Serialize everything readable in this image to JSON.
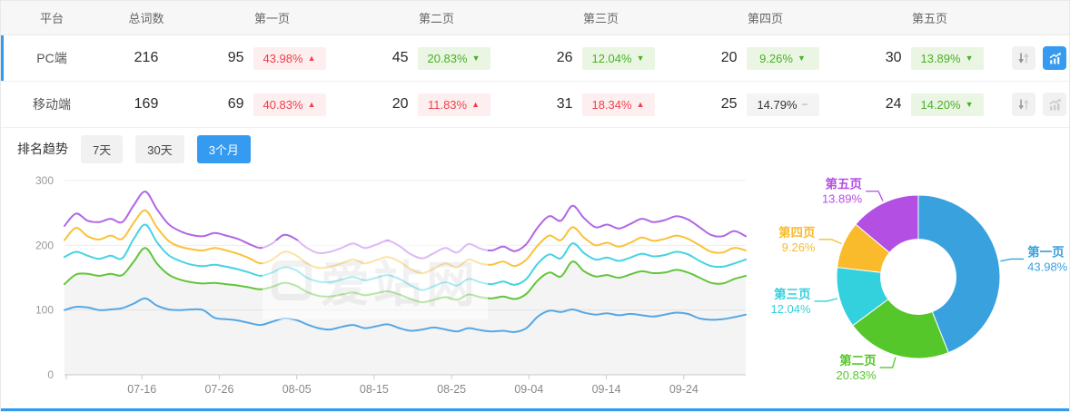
{
  "colors": {
    "accent": "#359bf0",
    "red_text": "#f0404a",
    "red_bg": "#fdeff0",
    "green_text": "#4caf28",
    "green_bg": "#eaf6e3",
    "gray_badge_bg": "#f4f4f4",
    "selected_row_bar": "#2f9cf4"
  },
  "table": {
    "headers": [
      "平台",
      "总词数",
      "第一页",
      "第二页",
      "第三页",
      "第四页",
      "第五页"
    ],
    "rows": [
      {
        "platform": "PC端",
        "total": "216",
        "selected": true,
        "chart_active": true,
        "pages": [
          {
            "count": "95",
            "change": "43.98%",
            "dir": "up",
            "tone": "red"
          },
          {
            "count": "45",
            "change": "20.83%",
            "dir": "down",
            "tone": "green"
          },
          {
            "count": "26",
            "change": "12.04%",
            "dir": "down",
            "tone": "green"
          },
          {
            "count": "20",
            "change": "9.26%",
            "dir": "down",
            "tone": "green"
          },
          {
            "count": "30",
            "change": "13.89%",
            "dir": "down",
            "tone": "green"
          }
        ]
      },
      {
        "platform": "移动端",
        "total": "169",
        "selected": false,
        "chart_active": false,
        "pages": [
          {
            "count": "69",
            "change": "40.83%",
            "dir": "up",
            "tone": "red"
          },
          {
            "count": "20",
            "change": "11.83%",
            "dir": "up",
            "tone": "red"
          },
          {
            "count": "31",
            "change": "18.34%",
            "dir": "up",
            "tone": "red"
          },
          {
            "count": "25",
            "change": "14.79%",
            "dir": "flat",
            "tone": "gray"
          },
          {
            "count": "24",
            "change": "14.20%",
            "dir": "down",
            "tone": "green"
          }
        ]
      }
    ]
  },
  "trend": {
    "label": "排名趋势",
    "tabs": [
      {
        "label": "7天",
        "active": false
      },
      {
        "label": "30天",
        "active": false
      },
      {
        "label": "3个月",
        "active": true
      }
    ]
  },
  "watermark": "爱站网",
  "chart_data": [
    {
      "type": "line",
      "title": "排名趋势 3个月",
      "x_tick_labels": [
        "07-16",
        "07-26",
        "08-05",
        "08-15",
        "08-25",
        "09-04",
        "09-14",
        "09-24"
      ],
      "x_tick_days": [
        10,
        20,
        30,
        40,
        50,
        60,
        70,
        80
      ],
      "x_domain_days": [
        0,
        88
      ],
      "ylim": [
        0,
        300
      ],
      "y_ticks": [
        0,
        100,
        200,
        300
      ],
      "grid": true,
      "legend_position": "none",
      "series": [
        {
          "name": "第一页",
          "color": "#55a7e5",
          "area_fill": false,
          "values": [
            100,
            105,
            104,
            100,
            101,
            103,
            110,
            118,
            107,
            101,
            100,
            101,
            100,
            88,
            86,
            84,
            80,
            77,
            82,
            87,
            85,
            78,
            72,
            70,
            74,
            77,
            72,
            75,
            78,
            72,
            68,
            70,
            73,
            70,
            67,
            72,
            69,
            67,
            68,
            66,
            72,
            90,
            99,
            97,
            101,
            96,
            93,
            95,
            92,
            94,
            92,
            90,
            93,
            96,
            94,
            87,
            85,
            86,
            89,
            93
          ]
        },
        {
          "name": "第二页",
          "color": "#64c53c",
          "area_fill": true,
          "values": [
            140,
            155,
            156,
            153,
            156,
            154,
            175,
            196,
            172,
            155,
            147,
            143,
            141,
            142,
            140,
            138,
            135,
            132,
            136,
            142,
            138,
            128,
            122,
            121,
            124,
            127,
            123,
            126,
            129,
            124,
            117,
            112,
            116,
            120,
            116,
            124,
            120,
            118,
            121,
            117,
            125,
            146,
            158,
            152,
            175,
            160,
            152,
            154,
            150,
            155,
            160,
            157,
            158,
            162,
            158,
            150,
            142,
            141,
            148,
            153
          ]
        },
        {
          "name": "第三页",
          "color": "#45d3e2",
          "area_fill": false,
          "values": [
            182,
            190,
            184,
            179,
            184,
            180,
            210,
            232,
            205,
            185,
            176,
            170,
            168,
            170,
            167,
            163,
            158,
            153,
            158,
            166,
            162,
            150,
            144,
            143,
            147,
            151,
            146,
            150,
            154,
            148,
            138,
            131,
            137,
            143,
            138,
            148,
            143,
            140,
            144,
            139,
            148,
            172,
            186,
            180,
            203,
            188,
            178,
            181,
            176,
            181,
            187,
            183,
            185,
            190,
            186,
            176,
            168,
            167,
            172,
            178
          ]
        },
        {
          "name": "第四页",
          "color": "#f9c23a",
          "area_fill": false,
          "values": [
            208,
            227,
            214,
            209,
            215,
            210,
            235,
            254,
            228,
            207,
            198,
            194,
            192,
            196,
            192,
            187,
            180,
            172,
            178,
            190,
            185,
            172,
            165,
            167,
            172,
            178,
            172,
            177,
            182,
            175,
            163,
            157,
            164,
            172,
            166,
            178,
            172,
            170,
            175,
            168,
            178,
            200,
            215,
            208,
            228,
            212,
            200,
            204,
            198,
            204,
            212,
            207,
            210,
            215,
            210,
            200,
            190,
            189,
            196,
            192
          ]
        },
        {
          "name": "第五页",
          "color": "#b266e6",
          "area_fill": false,
          "values": [
            230,
            249,
            238,
            236,
            241,
            236,
            262,
            283,
            256,
            233,
            222,
            216,
            214,
            219,
            215,
            210,
            202,
            196,
            203,
            216,
            210,
            196,
            188,
            190,
            196,
            203,
            196,
            201,
            207,
            199,
            186,
            180,
            188,
            196,
            189,
            202,
            195,
            192,
            198,
            191,
            202,
            228,
            245,
            238,
            261,
            242,
            228,
            232,
            226,
            233,
            241,
            236,
            239,
            245,
            240,
            228,
            216,
            214,
            222,
            214
          ]
        }
      ]
    },
    {
      "type": "pie",
      "donut": true,
      "inner_radius_ratio": 0.46,
      "labels": [
        "第一页",
        "第二页",
        "第三页",
        "第四页",
        "第五页"
      ],
      "values": [
        43.98,
        20.83,
        12.04,
        9.26,
        13.89
      ],
      "value_labels": [
        "43.98%",
        "20.83%",
        "12.04%",
        "9.26%",
        "13.89%"
      ],
      "colors": [
        "#38a1de",
        "#55c72a",
        "#33d0de",
        "#f9bb2c",
        "#b44fe4"
      ]
    }
  ]
}
